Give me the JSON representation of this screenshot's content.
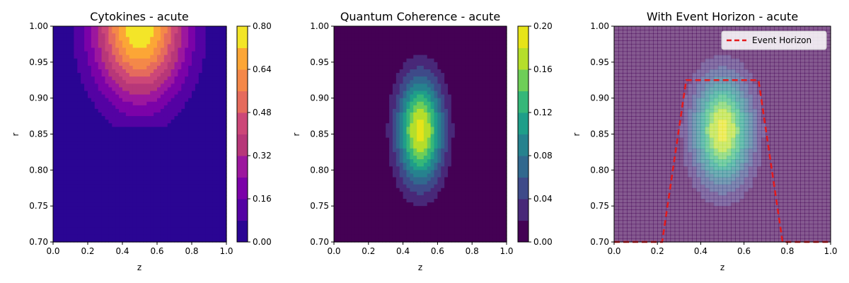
{
  "chart_data": [
    {
      "type": "contourf",
      "title": "Cytokines - acute",
      "xlabel": "z",
      "ylabel": "r",
      "xlim": [
        0.0,
        1.0
      ],
      "ylim": [
        0.7,
        1.0
      ],
      "x_ticks": [
        "0.0",
        "0.2",
        "0.4",
        "0.6",
        "0.8",
        "1.0"
      ],
      "y_ticks": [
        "0.70",
        "0.75",
        "0.80",
        "0.85",
        "0.90",
        "0.95",
        "1.00"
      ],
      "colormap": "plasma",
      "field": {
        "center_z": 0.5,
        "center_r": 1.0,
        "peak": 0.8,
        "sigma_z": 0.18,
        "sigma_r": 0.07,
        "onset_r": 0.86
      },
      "colorbar": {
        "ticks": [
          "0.00",
          "0.16",
          "0.32",
          "0.48",
          "0.64",
          "0.80"
        ],
        "levels": [
          0.0,
          0.08,
          0.16,
          0.24,
          0.32,
          0.4,
          0.48,
          0.56,
          0.64,
          0.72,
          0.8
        ],
        "range": [
          0,
          0.8
        ]
      }
    },
    {
      "type": "contourf",
      "title": "Quantum Coherence - acute",
      "xlabel": "z",
      "ylabel": "r",
      "xlim": [
        0.0,
        1.0
      ],
      "ylim": [
        0.7,
        1.0
      ],
      "x_ticks": [
        "0.0",
        "0.2",
        "0.4",
        "0.6",
        "0.8",
        "1.0"
      ],
      "y_ticks": [
        "0.70",
        "0.75",
        "0.80",
        "0.85",
        "0.90",
        "0.95",
        "1.00"
      ],
      "colormap": "viridis",
      "field": {
        "center_z": 0.5,
        "center_r": 0.855,
        "peak": 0.19,
        "sigma_z": 0.09,
        "sigma_r": 0.05
      },
      "colorbar": {
        "ticks": [
          "0.00",
          "0.04",
          "0.08",
          "0.12",
          "0.16",
          "0.20"
        ],
        "levels": [
          0.0,
          0.02,
          0.04,
          0.06,
          0.08,
          0.1,
          0.12,
          0.14,
          0.16,
          0.18,
          0.2
        ],
        "range": [
          0,
          0.2
        ]
      }
    },
    {
      "type": "contourf+line",
      "title": "With Event Horizon - acute",
      "xlabel": "z",
      "ylabel": "r",
      "xlim": [
        0.0,
        1.0
      ],
      "ylim": [
        0.7,
        1.0
      ],
      "x_ticks": [
        "0.0",
        "0.2",
        "0.4",
        "0.6",
        "0.8",
        "1.0"
      ],
      "y_ticks": [
        "0.70",
        "0.75",
        "0.80",
        "0.85",
        "0.90",
        "0.95",
        "1.00"
      ],
      "colormap": "viridis",
      "overlay_alpha": 0.65,
      "field": {
        "center_z": 0.5,
        "center_r": 0.855,
        "peak": 0.19,
        "sigma_z": 0.09,
        "sigma_r": 0.05
      },
      "series": [
        {
          "name": "Event Horizon",
          "style": "dashed",
          "color": "#e41a1c",
          "x": [
            0.0,
            0.222,
            0.333,
            0.444,
            0.556,
            0.667,
            0.778,
            1.0
          ],
          "y": [
            0.7,
            0.7,
            0.925,
            0.925,
            0.925,
            0.925,
            0.7,
            0.7
          ]
        }
      ],
      "legend": {
        "position": "top-right",
        "label": "Event Horizon"
      }
    }
  ]
}
